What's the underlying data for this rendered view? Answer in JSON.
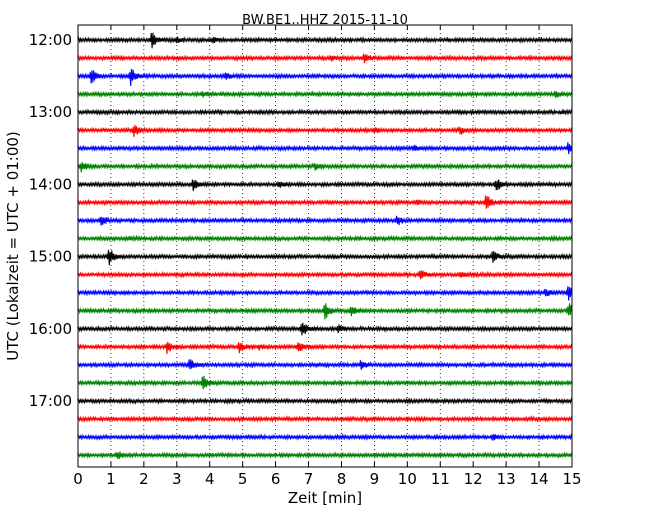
{
  "chart_data": {
    "type": "line",
    "title": "BW.BE1..HHZ 2015-11-10",
    "xlabel": "Zeit  [min]",
    "ylabel": "UTC (Lokalzeit = UTC + 01:00)",
    "xlim": [
      0,
      15
    ],
    "x_ticks": [
      "0",
      "1",
      "2",
      "3",
      "4",
      "5",
      "6",
      "7",
      "8",
      "9",
      "10",
      "11",
      "12",
      "13",
      "14",
      "15"
    ],
    "y_tick_labels": [
      "12:00",
      "13:00",
      "14:00",
      "15:00",
      "16:00",
      "17:00"
    ],
    "grid": "vertical-dotted",
    "row_colors": [
      "#000000",
      "#ff0000",
      "#0000ff",
      "#008000"
    ],
    "series": [
      {
        "start": "12:00",
        "events": [
          [
            2.25,
            1.0
          ],
          [
            4.1,
            0.4
          ],
          [
            3.0,
            0.25
          ]
        ]
      },
      {
        "start": "12:15",
        "events": [
          [
            8.7,
            0.6
          ],
          [
            7.7,
            0.25
          ]
        ]
      },
      {
        "start": "12:30",
        "events": [
          [
            0.4,
            1.0
          ],
          [
            1.6,
            1.1
          ],
          [
            4.5,
            0.35
          ]
        ]
      },
      {
        "start": "12:45",
        "events": [
          [
            3.8,
            0.3
          ],
          [
            14.5,
            0.3
          ]
        ]
      },
      {
        "start": "13:00",
        "events": [
          [
            14.7,
            0.2
          ]
        ]
      },
      {
        "start": "13:15",
        "events": [
          [
            1.7,
            0.7
          ],
          [
            11.6,
            0.5
          ],
          [
            9.0,
            0.3
          ]
        ]
      },
      {
        "start": "13:30",
        "events": [
          [
            14.9,
            0.8
          ],
          [
            10.2,
            0.3
          ]
        ]
      },
      {
        "start": "13:45",
        "events": [
          [
            0.1,
            0.7
          ],
          [
            7.2,
            0.4
          ]
        ]
      },
      {
        "start": "14:00",
        "events": [
          [
            3.5,
            0.8
          ],
          [
            12.7,
            0.9
          ],
          [
            6.1,
            0.35
          ]
        ]
      },
      {
        "start": "14:15",
        "events": [
          [
            12.4,
            1.0
          ],
          [
            10.3,
            0.25
          ]
        ]
      },
      {
        "start": "14:30",
        "events": [
          [
            0.7,
            0.8
          ],
          [
            9.7,
            0.6
          ]
        ]
      },
      {
        "start": "14:45",
        "events": [
          [
            1.6,
            0.15
          ]
        ]
      },
      {
        "start": "15:00",
        "events": [
          [
            0.95,
            1.1
          ],
          [
            12.6,
            0.7
          ]
        ]
      },
      {
        "start": "15:15",
        "events": [
          [
            10.4,
            0.7
          ],
          [
            11.6,
            0.4
          ]
        ]
      },
      {
        "start": "15:30",
        "events": [
          [
            14.9,
            0.9
          ],
          [
            14.2,
            0.5
          ]
        ]
      },
      {
        "start": "15:45",
        "events": [
          [
            7.5,
            1.0
          ],
          [
            14.9,
            0.9
          ],
          [
            8.3,
            0.5
          ]
        ]
      },
      {
        "start": "16:00",
        "events": [
          [
            6.8,
            1.0
          ],
          [
            7.9,
            0.45
          ]
        ]
      },
      {
        "start": "16:15",
        "events": [
          [
            2.7,
            0.8
          ],
          [
            4.9,
            0.6
          ],
          [
            6.7,
            0.7
          ],
          [
            5.5,
            0.3
          ]
        ]
      },
      {
        "start": "16:30",
        "events": [
          [
            3.4,
            0.8
          ],
          [
            8.6,
            0.6
          ]
        ]
      },
      {
        "start": "16:45",
        "events": [
          [
            3.8,
            1.0
          ]
        ]
      },
      {
        "start": "17:00",
        "events": []
      },
      {
        "start": "17:15",
        "events": []
      },
      {
        "start": "17:30",
        "events": [
          [
            12.6,
            0.3
          ]
        ]
      },
      {
        "start": "17:45",
        "events": [
          [
            1.2,
            0.5
          ]
        ]
      }
    ]
  }
}
